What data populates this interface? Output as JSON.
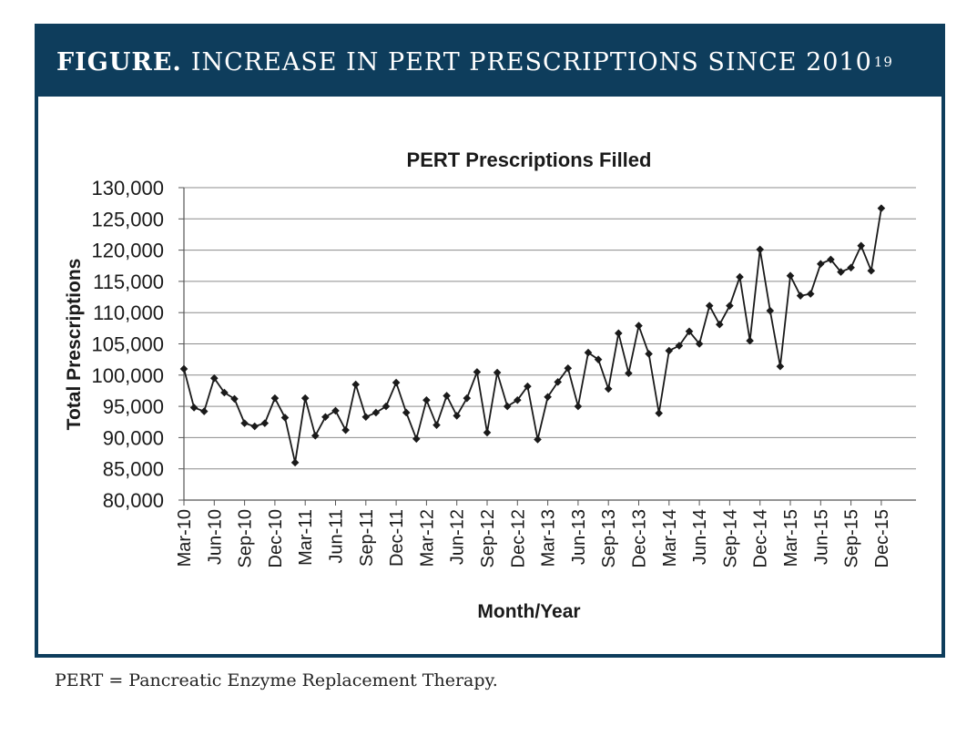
{
  "figure": {
    "label": "FIGURE.",
    "title": "INCREASE IN PERT PRESCRIPTIONS SINCE 2010",
    "superscript": "19"
  },
  "footnote": "PERT = Pancreatic Enzyme Replacement Therapy.",
  "colors": {
    "banner": "#0e3d5c",
    "line": "#1a1a1a",
    "grid": "#8c8c8c"
  },
  "chart_data": {
    "type": "line",
    "title": "PERT Prescriptions Filled",
    "xlabel": "Month/Year",
    "ylabel": "Total Prescriptions",
    "ylim": [
      80000,
      130000
    ],
    "ytick_values": [
      80000,
      85000,
      90000,
      95000,
      100000,
      105000,
      110000,
      115000,
      120000,
      125000,
      130000
    ],
    "ytick_labels": [
      "80,000",
      "85,000",
      "90,000",
      "95,000",
      "100,000",
      "105,000",
      "110,000",
      "115,000",
      "120,000",
      "125,000",
      "130,000"
    ],
    "xtick_labels": [
      "Mar-10",
      "Jun-10",
      "Sep-10",
      "Dec-10",
      "Mar-11",
      "Jun-11",
      "Sep-11",
      "Dec-11",
      "Mar-12",
      "Jun-12",
      "Sep-12",
      "Dec-12",
      "Mar-13",
      "Jun-13",
      "Sep-13",
      "Dec-13",
      "Mar-14",
      "Jun-14",
      "Sep-14",
      "Dec-14",
      "Mar-15",
      "Jun-15",
      "Sep-15",
      "Dec-15"
    ],
    "series": [
      {
        "name": "PERT Prescriptions Filled",
        "start": "Mar-10",
        "values": [
          101000,
          94800,
          94200,
          99500,
          97200,
          96200,
          92300,
          91800,
          92300,
          96300,
          93200,
          86000,
          96300,
          90300,
          93300,
          94300,
          91200,
          98500,
          93300,
          94000,
          95000,
          98800,
          94000,
          89800,
          96000,
          92000,
          96700,
          93500,
          96300,
          100500,
          90800,
          100400,
          95000,
          96000,
          98200,
          89700,
          96500,
          98900,
          101100,
          95000,
          103600,
          102500,
          97800,
          106700,
          100300,
          107900,
          103400,
          93900,
          103900,
          104700,
          107000,
          105000,
          111100,
          108100,
          111100,
          115700,
          105500,
          120100,
          110300,
          101400,
          115900,
          112700,
          113000,
          117800,
          118500,
          116500,
          117200,
          120700,
          116700,
          126700
        ]
      }
    ]
  }
}
